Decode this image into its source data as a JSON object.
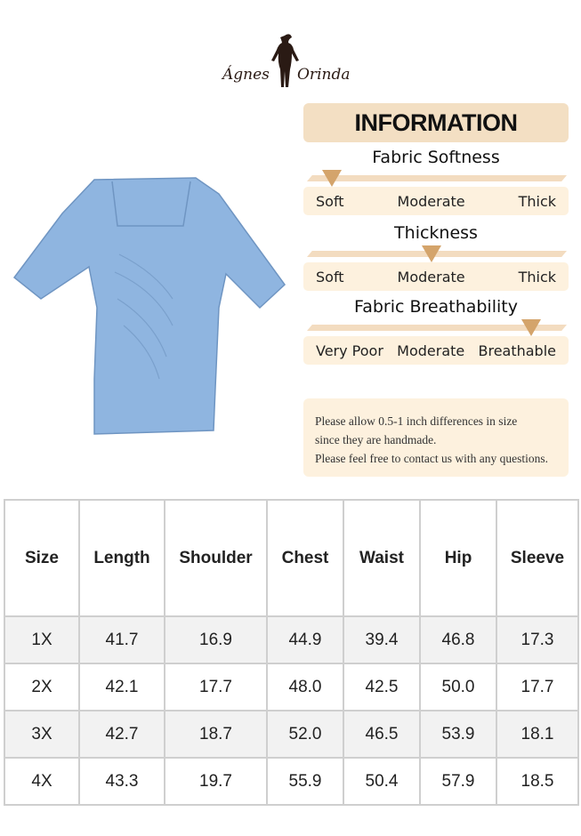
{
  "brand": {
    "name_left": "Ágnes",
    "name_right": "Orinda"
  },
  "info": {
    "title": "INFORMATION",
    "scales": [
      {
        "title": "Fabric Softness",
        "labels": [
          "Soft",
          "Moderate",
          "Thick"
        ],
        "level": 0.1
      },
      {
        "title": "Thickness",
        "labels": [
          "Soft",
          "Moderate",
          "Thick"
        ],
        "level": 0.5
      },
      {
        "title": "Fabric Breathability",
        "labels": [
          "Very Poor",
          "Moderate",
          "Breathable"
        ],
        "level": 0.9
      }
    ],
    "accent_color": "#d4a46b",
    "note": [
      "Please allow 0.5-1 inch differences in size",
      "since they are handmade.",
      "Please feel free to contact us with any questions."
    ]
  },
  "product": {
    "color": "#8fb5e0"
  },
  "size_table": {
    "headers": [
      "Size",
      "Length",
      "Shoulder",
      "Chest",
      "Waist",
      "Hip",
      "Sleeve"
    ],
    "rows": [
      [
        "1X",
        "41.7",
        "16.9",
        "44.9",
        "39.4",
        "46.8",
        "17.3"
      ],
      [
        "2X",
        "42.1",
        "17.7",
        "48.0",
        "42.5",
        "50.0",
        "17.7"
      ],
      [
        "3X",
        "42.7",
        "18.7",
        "52.0",
        "46.5",
        "53.9",
        "18.1"
      ],
      [
        "4X",
        "43.3",
        "19.7",
        "55.9",
        "50.4",
        "57.9",
        "18.5"
      ]
    ]
  }
}
